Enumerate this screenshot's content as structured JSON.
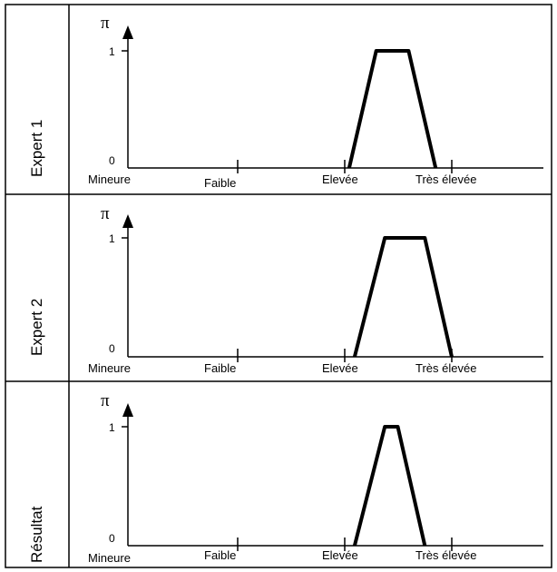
{
  "diagram": {
    "x_axis_labels": [
      "Mineure",
      "Faible",
      "Elevée",
      "Très élevée"
    ],
    "y_axis_symbol": "π",
    "y_tick_top": "1",
    "y_tick_zero": "0",
    "panels": [
      {
        "row_label": "Expert  1",
        "trapezoid": [
          2.05,
          2.3,
          2.6,
          2.85
        ]
      },
      {
        "row_label": "Expert 2",
        "trapezoid": [
          2.1,
          2.38,
          2.75,
          3.0
        ]
      },
      {
        "row_label": "Résultat",
        "trapezoid": [
          2.1,
          2.38,
          2.5,
          2.75
        ]
      }
    ]
  }
}
